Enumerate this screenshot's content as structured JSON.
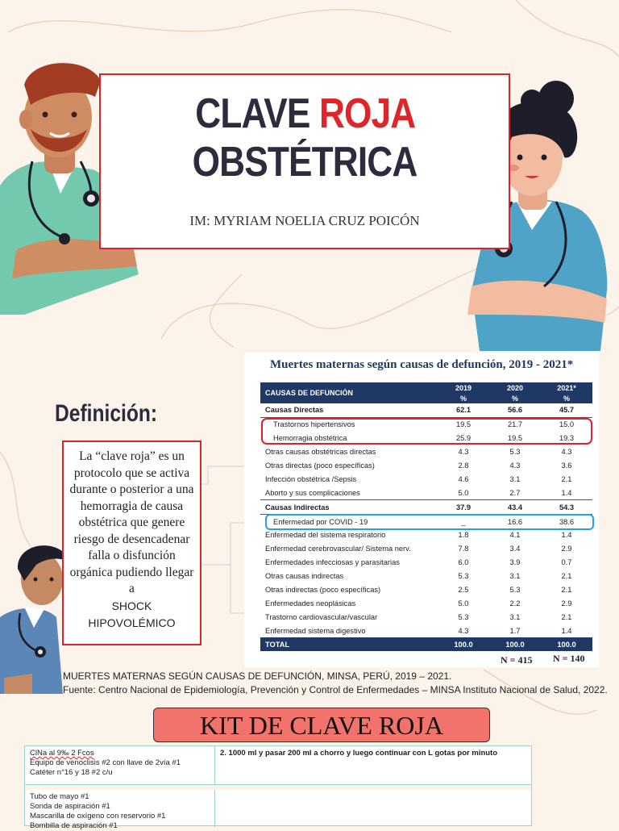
{
  "header": {
    "title_part1": "CLAVE ",
    "title_part2": "ROJA",
    "title_part3": " OBSTÉTRICA",
    "author": "IM: MYRIAM NOELIA CRUZ POICÓN"
  },
  "definition": {
    "heading": "Definición:",
    "text_serif": "La “clave roja” es un protocolo que se activa durante o posterior a una hemorragia de causa obstétrica que genere riesgo de desencadenar falla o disfunción orgánica pudiendo llegar a",
    "text_sans": "SHOCK HIPOVOLÉMICO"
  },
  "table": {
    "title": "Muertes maternas según causas de defunción, 2019 - 2021*",
    "header": {
      "label": "CAUSAS DE DEFUNCIÓN",
      "years": [
        "2019",
        "2020",
        "2021*"
      ],
      "unit": "%"
    },
    "rows": [
      {
        "label": "Causas Directas",
        "v": [
          "62.1",
          "56.6",
          "45.7"
        ],
        "style": "bold"
      },
      {
        "label": "Trastornos hipertensivos",
        "v": [
          "19.5",
          "21.7",
          "15.0"
        ],
        "style": "ind"
      },
      {
        "label": "Hemorragia obstétrica",
        "v": [
          "25.9",
          "19.5",
          "19.3"
        ],
        "style": "ind"
      },
      {
        "label": "Otras causas obstétricas directas",
        "v": [
          "4.3",
          "5.3",
          "4.3"
        ],
        "style": ""
      },
      {
        "label": "Otras directas (poco específicas)",
        "v": [
          "2.8",
          "4.3",
          "3.6"
        ],
        "style": ""
      },
      {
        "label": "Infección obstétrica /Sepsis",
        "v": [
          "4.6",
          "3.1",
          "2.1"
        ],
        "style": ""
      },
      {
        "label": "Aborto y sus complicaciones",
        "v": [
          "5.0",
          "2.7",
          "1.4"
        ],
        "style": ""
      },
      {
        "label": "Causas Indirectas",
        "v": [
          "37.9",
          "43.4",
          "54.3"
        ],
        "style": "bold"
      },
      {
        "label": "Enfermedad por COVID - 19",
        "v": [
          "_",
          "16.6",
          "38.6"
        ],
        "style": "ind"
      },
      {
        "label": "Enfermedad del sistema respiratorio",
        "v": [
          "1.8",
          "4.1",
          "1.4"
        ],
        "style": ""
      },
      {
        "label": "Enfermedad cerebrovascular/ Sistema nerv.",
        "v": [
          "7.8",
          "3.4",
          "2.9"
        ],
        "style": ""
      },
      {
        "label": "Enfermedades infecciosas y parasitarias",
        "v": [
          "6.0",
          "3.9",
          "0.7"
        ],
        "style": ""
      },
      {
        "label": "Otras causas indirectas",
        "v": [
          "5.3",
          "3.1",
          "2.1"
        ],
        "style": ""
      },
      {
        "label": "Otras indirectas (poco específicas)",
        "v": [
          "2.5",
          "5.3",
          "2.1"
        ],
        "style": ""
      },
      {
        "label": "Enfermedades neoplásicas",
        "v": [
          "5.0",
          "2.2",
          "2.9"
        ],
        "style": ""
      },
      {
        "label": "Trastorno cardiovascular/vascular",
        "v": [
          "5.3",
          "3.1",
          "2.1"
        ],
        "style": ""
      },
      {
        "label": "Enfermedad sistema digestivo",
        "v": [
          "4.3",
          "1.7",
          "1.4"
        ],
        "style": ""
      }
    ],
    "total": {
      "label": "TOTAL",
      "v": [
        "100.0",
        "100.0",
        "100.0"
      ]
    },
    "n_2020": "N = 415",
    "n_2021": "N = 140"
  },
  "source": {
    "line1": "MUERTES MATERNAS SEGÚN CAUSAS DE DEFUNCIÓN, MINSA, PERÚ, 2019 – 2021.",
    "line2": "Fuente: Centro Nacional de Epidemiología, Prevención y Control de Enfermedades – MINSA Instituto Nacional de Salud, 2022."
  },
  "kit": {
    "title": "KIT DE CLAVE ROJA",
    "cell1": [
      "ClNa al 9‰ 2 Fcos",
      "Equipo de venoclisis #2 con llave de 2vía #1",
      "Catéter n°16 y 18 #2 c/u"
    ],
    "cell2": "2. 1000 ml y pasar 200 ml a chorro y luego continuar con L gotas por minuto",
    "cell3": [
      "Tubo de mayo #1",
      "Sonda de aspiración #1",
      "Mascarilla de oxígeno con reservorio #1",
      "Bombilla de aspiración #1"
    ]
  },
  "colors": {
    "accent_red": "#e0252a",
    "navy": "#1f3864",
    "scrub": "#6cc1a7",
    "kit_salmon": "#f2736b"
  }
}
